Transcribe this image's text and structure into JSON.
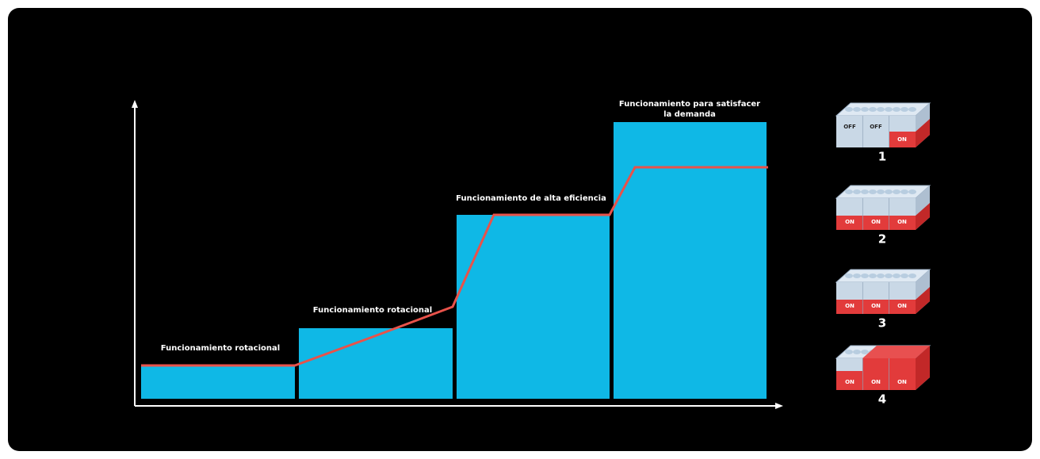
{
  "stages": [
    {
      "label": [
        "Funcionamiento rotacional"
      ]
    },
    {
      "label": [
        "Funcionamiento rotacional"
      ]
    },
    {
      "label": [
        "Funcionamiento de alta eficiencia"
      ]
    },
    {
      "label": [
        "Funcionamiento para satisfacer",
        "la demanda"
      ]
    }
  ],
  "units": [
    {
      "number": "1",
      "modules": [
        "OFF",
        "OFF",
        "ON"
      ]
    },
    {
      "number": "2",
      "modules": [
        "ON",
        "ON",
        "ON"
      ]
    },
    {
      "number": "3",
      "modules": [
        "ON",
        "ON",
        "ON"
      ]
    },
    {
      "number": "4",
      "modules": [
        "ON",
        "ON",
        "ON"
      ]
    }
  ]
}
